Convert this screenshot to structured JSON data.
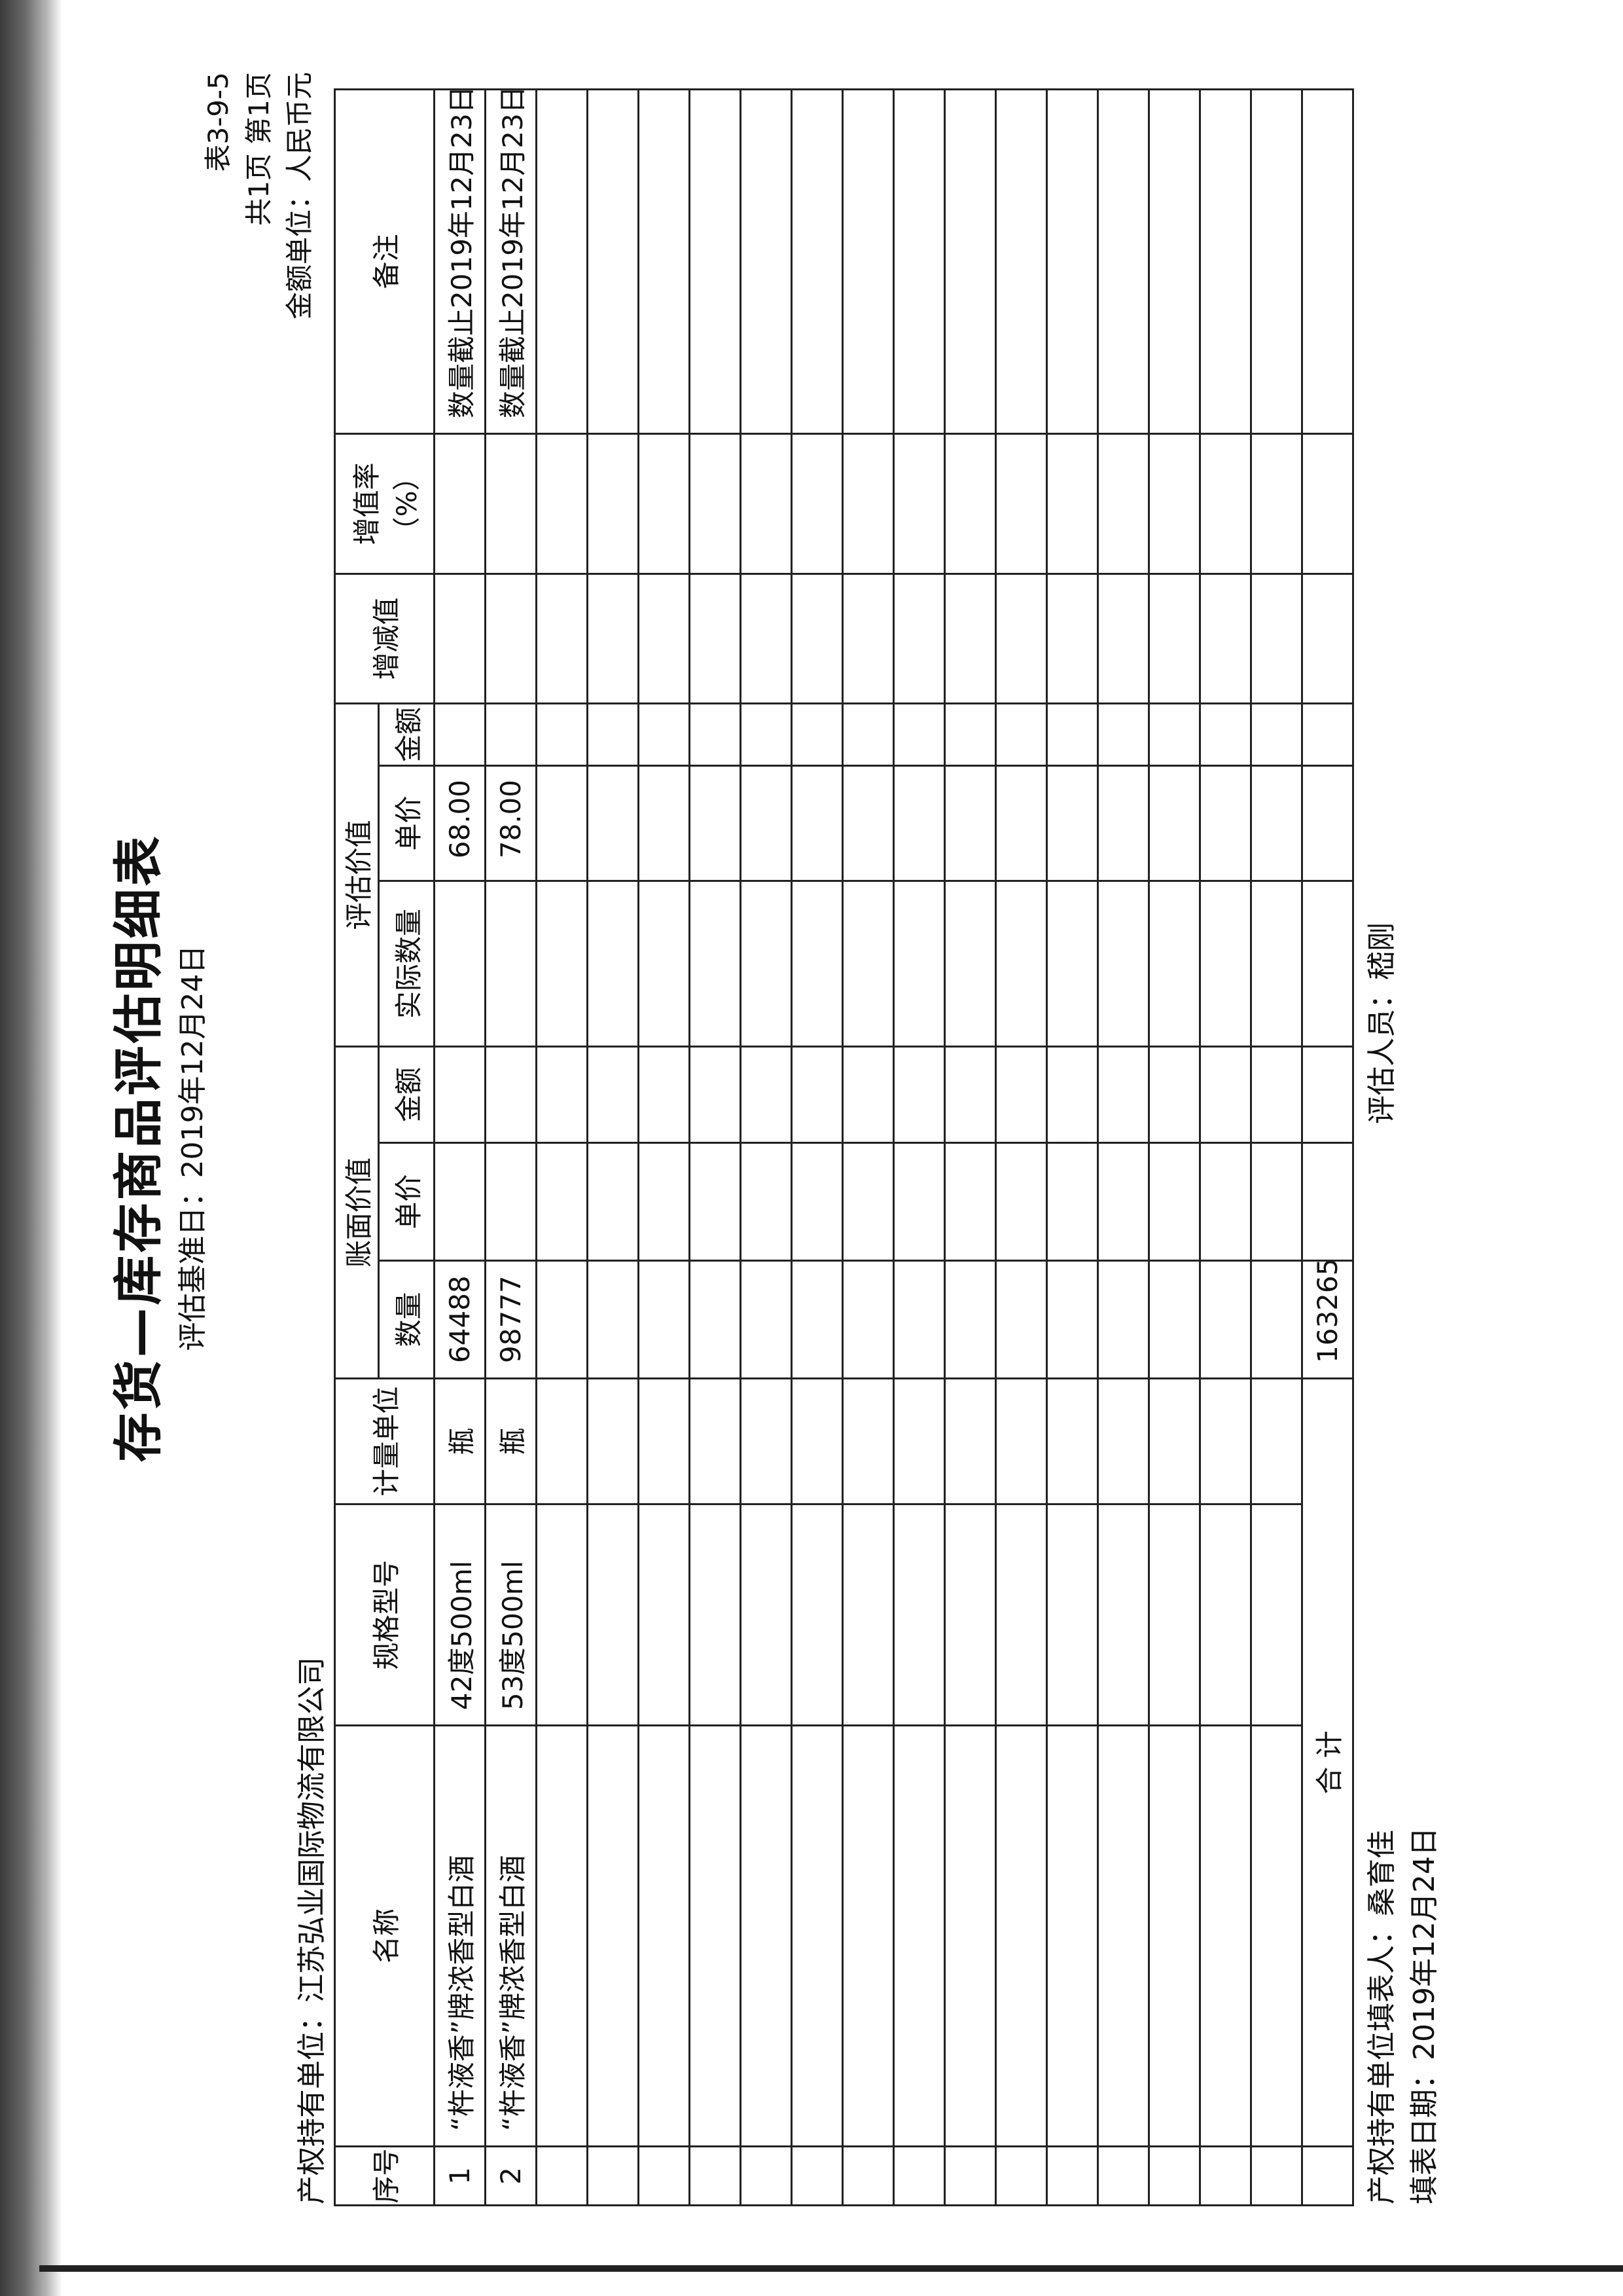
{
  "header": {
    "title": "存货—库存商品评估明细表",
    "base_date": "评估基准日：2019年12月24日",
    "table_no": "表3-9-5",
    "pages": "共1页 第1页",
    "currency_unit": "金额单位：人民币元",
    "owner": "产权持有单位：江苏弘业国际物流有限公司"
  },
  "columns": {
    "seq": "序号",
    "name": "名称",
    "spec": "规格型号",
    "unit": "计量单位",
    "book_group": "账面价值",
    "book_qty": "数量",
    "book_price": "单价",
    "book_amount": "金额",
    "eval_group": "评估价值",
    "eval_qty": "实际数量",
    "eval_price": "单价",
    "eval_amount": "金额",
    "change": "增减值",
    "rate": "增值率（%）",
    "remark": "备注"
  },
  "rows": [
    {
      "seq": "1",
      "name": "“杵液香”牌浓香型白酒",
      "spec": "42度500ml",
      "unit": "瓶",
      "book_qty": "64488",
      "book_price": "",
      "book_amount": "",
      "eval_qty": "",
      "eval_price": "68.00",
      "eval_amount": "",
      "change": "",
      "rate": "",
      "remark": "数量截止2019年12月23日"
    },
    {
      "seq": "2",
      "name": "“杵液香”牌浓香型白酒",
      "spec": "53度500ml",
      "unit": "瓶",
      "book_qty": "98777",
      "book_price": "",
      "book_amount": "",
      "eval_qty": "",
      "eval_price": "78.00",
      "eval_amount": "",
      "change": "",
      "rate": "",
      "remark": "数量截止2019年12月23日"
    }
  ],
  "total": {
    "label": "合  计",
    "book_qty": "163265"
  },
  "footer": {
    "filler": "产权持有单位填表人：桑育佳",
    "fill_date": "填表日期：2019年12月24日",
    "appraiser": "评估人员：嵇刚"
  }
}
